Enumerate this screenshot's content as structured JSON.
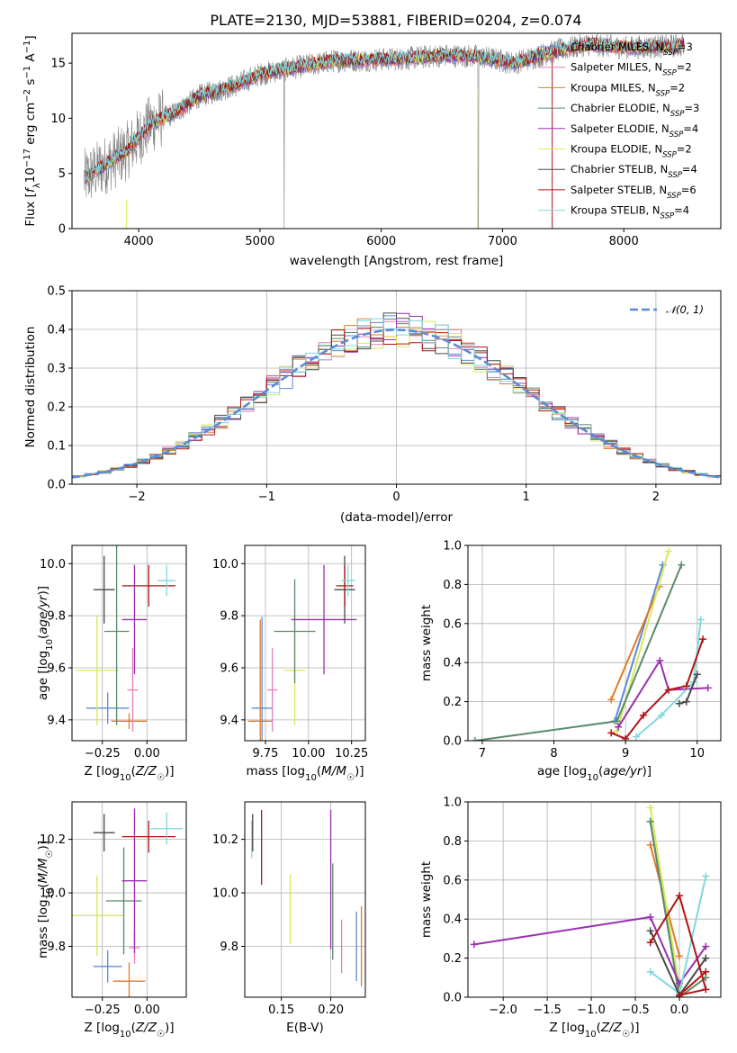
{
  "figure": {
    "title": "PLATE=2130, MJD=53881, FIBERID=0204, z=0.074"
  },
  "colors": {
    "chabrier_miles": "#5b8bd8",
    "salpeter_miles": "#e77fb5",
    "kroupa_miles": "#e07a2a",
    "chabrier_elodie": "#5a8a6a",
    "salpeter_elodie": "#9a2fb0",
    "kroupa_elodie": "#d8e85a",
    "chabrier_stelib": "#4a4a4a",
    "salpeter_stelib": "#b01515",
    "kroupa_stelib": "#7fd8dd",
    "grey_spectrum": "#808080",
    "gaussian": "#5b8bd8"
  },
  "chart_data": [
    {
      "id": "spectrum",
      "type": "line",
      "title": "PLATE=2130, MJD=53881, FIBERID=0204, z=0.074",
      "xlabel": "wavelength [Angstrom, rest frame]",
      "ylabel": "Flux [f_λ 10^-17 erg cm^-2 s^-1 A^-1]",
      "xlim": [
        3450,
        8800
      ],
      "ylim": [
        0,
        17.7
      ],
      "xticks": [
        4000,
        5000,
        6000,
        7000,
        8000
      ],
      "yticks": [
        0,
        5,
        10,
        15
      ],
      "legend_position": "top-right",
      "x_continuum": [
        3550,
        3700,
        3900,
        4100,
        4300,
        4500,
        4800,
        5000,
        5300,
        5600,
        5900,
        6200,
        6500,
        6800,
        7100,
        7400,
        7700,
        8000,
        8300,
        8500
      ],
      "y_continuum": [
        4.5,
        5.6,
        7.0,
        9.5,
        10.5,
        12.0,
        13.0,
        14.0,
        14.6,
        15.2,
        15.3,
        15.4,
        15.7,
        15.6,
        15.0,
        16.0,
        16.7,
        16.4,
        16.5,
        16.6
      ],
      "series": [
        {
          "name": "Chabrier MILES, N_SSP=3",
          "color_key": "chabrier_miles"
        },
        {
          "name": "Salpeter MILES, N_SSP=2",
          "color_key": "salpeter_miles"
        },
        {
          "name": "Kroupa MILES, N_SSP=2",
          "color_key": "kroupa_miles"
        },
        {
          "name": "Chabrier ELODIE, N_SSP=3",
          "color_key": "chabrier_elodie"
        },
        {
          "name": "Salpeter ELODIE, N_SSP=4",
          "color_key": "salpeter_elodie"
        },
        {
          "name": "Kroupa ELODIE, N_SSP=2",
          "color_key": "kroupa_elodie"
        },
        {
          "name": "Chabrier STELIB, N_SSP=4",
          "color_key": "chabrier_stelib"
        },
        {
          "name": "Salpeter STELIB, N_SSP=6",
          "color_key": "salpeter_stelib"
        },
        {
          "name": "Kroupa STELIB, N_SSP=4",
          "color_key": "kroupa_stelib"
        }
      ]
    },
    {
      "id": "residuals",
      "type": "line",
      "xlabel": "(data-model)/error",
      "ylabel": "Normed distribution",
      "xlim": [
        -2.5,
        2.5
      ],
      "ylim": [
        0,
        0.5
      ],
      "xticks": [
        -2,
        -1,
        0,
        1,
        2
      ],
      "yticks": [
        0.0,
        0.1,
        0.2,
        0.3,
        0.4,
        0.5
      ],
      "grid": true,
      "legend_position": "top-right",
      "gaussian_label": "𝒩(0, 1)",
      "bin_width": 0.1
    },
    {
      "id": "age_vs_Z",
      "type": "scatter",
      "xlabel": "Z [log10(Z/Z☉)]",
      "ylabel": "age [log10(age/yr)]",
      "xlim": [
        -0.42,
        0.22
      ],
      "ylim": [
        9.32,
        10.07
      ],
      "xticks": [
        -0.25,
        0.0
      ],
      "yticks": [
        9.4,
        9.6,
        9.8,
        10.0
      ],
      "grid": true,
      "points": [
        {
          "color_key": "chabrier_miles",
          "x": -0.22,
          "y": 9.445,
          "xerr": 0.12,
          "yerr": 0.06
        },
        {
          "color_key": "kroupa_miles",
          "x": -0.1,
          "y": 9.395,
          "xerr": 0.1,
          "yerr": 0.03
        },
        {
          "color_key": "salpeter_miles",
          "x": -0.08,
          "y": 9.515,
          "xerr": 0.03,
          "yerr": 0.16
        },
        {
          "color_key": "kroupa_elodie",
          "x": -0.28,
          "y": 9.59,
          "xerr": 0.12,
          "yerr": 0.21
        },
        {
          "color_key": "chabrier_elodie",
          "x": -0.17,
          "y": 9.74,
          "xerr": 0.07,
          "yerr": 0.36
        },
        {
          "color_key": "salpeter_elodie",
          "x": -0.07,
          "y": 9.785,
          "xerr": 0.07,
          "yerr": 0.21
        },
        {
          "color_key": "chabrier_stelib",
          "x": -0.24,
          "y": 9.9,
          "xerr": 0.06,
          "yerr": 0.13
        },
        {
          "color_key": "salpeter_stelib",
          "x": 0.01,
          "y": 9.915,
          "xerr": 0.15,
          "yerr": 0.08
        },
        {
          "color_key": "kroupa_stelib",
          "x": 0.11,
          "y": 9.935,
          "xerr": 0.05,
          "yerr": 0.06
        }
      ]
    },
    {
      "id": "age_vs_mass",
      "type": "scatter",
      "xlabel": "mass [log10(M/M☉)]",
      "ylabel": "",
      "xlim": [
        9.63,
        10.33
      ],
      "ylim": [
        9.32,
        10.07
      ],
      "xticks": [
        9.75,
        10.0,
        10.25
      ],
      "yticks": [
        9.4,
        9.6,
        9.8,
        10.0
      ],
      "grid": true,
      "points": [
        {
          "color_key": "chabrier_miles",
          "x": 9.73,
          "y": 9.445,
          "xerr": 0.06,
          "yerr": 0.35
        },
        {
          "color_key": "kroupa_miles",
          "x": 9.72,
          "y": 9.395,
          "xerr": 0.07,
          "yerr": 0.39
        },
        {
          "color_key": "salpeter_miles",
          "x": 9.79,
          "y": 9.515,
          "xerr": 0.03,
          "yerr": 0.16
        },
        {
          "color_key": "kroupa_elodie",
          "x": 9.92,
          "y": 9.59,
          "xerr": 0.06,
          "yerr": 0.21
        },
        {
          "color_key": "chabrier_elodie",
          "x": 9.92,
          "y": 9.74,
          "xerr": 0.12,
          "yerr": 0.2
        },
        {
          "color_key": "salpeter_elodie",
          "x": 10.09,
          "y": 9.785,
          "xerr": 0.19,
          "yerr": 0.21
        },
        {
          "color_key": "chabrier_stelib",
          "x": 10.21,
          "y": 9.9,
          "xerr": 0.06,
          "yerr": 0.13
        },
        {
          "color_key": "salpeter_stelib",
          "x": 10.21,
          "y": 9.915,
          "xerr": 0.05,
          "yerr": 0.08
        },
        {
          "color_key": "kroupa_stelib",
          "x": 10.23,
          "y": 9.935,
          "xerr": 0.04,
          "yerr": 0.06
        }
      ]
    },
    {
      "id": "weight_vs_age",
      "type": "line",
      "xlabel": "age [log10(age/yr)]",
      "ylabel": "mass weight",
      "xlim": [
        6.8,
        10.33
      ],
      "ylim": [
        0,
        1.0
      ],
      "xticks": [
        7,
        8,
        9,
        10
      ],
      "yticks": [
        0.0,
        0.2,
        0.4,
        0.6,
        0.8,
        1.0
      ],
      "grid": true,
      "series": [
        {
          "color_key": "chabrier_miles",
          "x": [
            8.85,
            9.52
          ],
          "y": [
            0.1,
            0.9
          ]
        },
        {
          "color_key": "kroupa_miles",
          "x": [
            8.8,
            9.47
          ],
          "y": [
            0.21,
            0.79
          ]
        },
        {
          "color_key": "kroupa_elodie",
          "x": [
            8.88,
            9.6
          ],
          "y": [
            0.05,
            0.97
          ]
        },
        {
          "color_key": "chabrier_elodie",
          "x": [
            6.9,
            8.88,
            9.78
          ],
          "y": [
            0.0,
            0.1,
            0.9
          ]
        },
        {
          "color_key": "salpeter_elodie",
          "x": [
            8.9,
            9.48,
            9.6,
            10.15
          ],
          "y": [
            0.07,
            0.41,
            0.26,
            0.27
          ]
        },
        {
          "color_key": "kroupa_stelib",
          "x": [
            9.15,
            9.5,
            9.95,
            10.05
          ],
          "y": [
            0.02,
            0.13,
            0.3,
            0.62
          ]
        },
        {
          "color_key": "chabrier_stelib",
          "x": [
            9.75,
            9.85,
            10.0
          ],
          "y": [
            0.19,
            0.2,
            0.34
          ]
        },
        {
          "color_key": "salpeter_stelib",
          "x": [
            8.8,
            9.0,
            9.25,
            9.6,
            9.85,
            10.08
          ],
          "y": [
            0.04,
            0.01,
            0.13,
            0.26,
            0.28,
            0.52
          ]
        }
      ]
    },
    {
      "id": "mass_vs_Z",
      "type": "scatter",
      "xlabel": "Z [log10(Z/Z☉)]",
      "ylabel": "mass [log10(M/M☉)]",
      "xlim": [
        -0.42,
        0.22
      ],
      "ylim": [
        9.61,
        10.34
      ],
      "xticks": [
        -0.25,
        0.0
      ],
      "yticks": [
        9.8,
        10.0,
        10.2
      ],
      "grid": true,
      "points": [
        {
          "color_key": "chabrier_miles",
          "x": -0.22,
          "y": 9.725,
          "xerr": 0.08,
          "yerr": 0.06
        },
        {
          "color_key": "kroupa_miles",
          "x": -0.1,
          "y": 9.67,
          "xerr": 0.09,
          "yerr": 0.07
        },
        {
          "color_key": "salpeter_miles",
          "x": -0.07,
          "y": 9.795,
          "xerr": 0.03,
          "yerr": 0.06
        },
        {
          "color_key": "kroupa_elodie",
          "x": -0.28,
          "y": 9.915,
          "xerr": 0.15,
          "yerr": 0.15
        },
        {
          "color_key": "chabrier_elodie",
          "x": -0.13,
          "y": 9.97,
          "xerr": 0.1,
          "yerr": 0.2
        },
        {
          "color_key": "salpeter_elodie",
          "x": -0.07,
          "y": 10.045,
          "xerr": 0.07,
          "yerr": 0.27
        },
        {
          "color_key": "chabrier_stelib",
          "x": -0.24,
          "y": 10.225,
          "xerr": 0.06,
          "yerr": 0.07
        },
        {
          "color_key": "salpeter_stelib",
          "x": 0.01,
          "y": 10.21,
          "xerr": 0.15,
          "yerr": 0.06
        },
        {
          "color_key": "kroupa_stelib",
          "x": 0.11,
          "y": 10.24,
          "xerr": 0.09,
          "yerr": 0.06
        }
      ]
    },
    {
      "id": "mass_vs_ebv",
      "type": "scatter",
      "xlabel": "E(B-V)",
      "ylabel": "",
      "xlim": [
        0.113,
        0.235
      ],
      "ylim": [
        9.61,
        10.34
      ],
      "xticks": [
        0.15,
        0.2
      ],
      "yticks": [
        9.8,
        10.0,
        10.2
      ],
      "grid": true,
      "points": [
        {
          "color_key": "kroupa_stelib",
          "x": 0.12,
          "y": 10.2,
          "yerr": 0.07
        },
        {
          "color_key": "chabrier_stelib",
          "x": 0.121,
          "y": 10.225,
          "yerr": 0.07
        },
        {
          "color_key": "salpeter_stelib",
          "x": 0.13,
          "y": 10.17,
          "yerr": 0.14
        },
        {
          "color_key": "kroupa_elodie",
          "x": 0.159,
          "y": 9.94,
          "yerr": 0.13
        },
        {
          "color_key": "salpeter_elodie",
          "x": 0.2,
          "y": 10.05,
          "yerr": 0.26
        },
        {
          "color_key": "chabrier_elodie",
          "x": 0.202,
          "y": 9.93,
          "yerr": 0.18
        },
        {
          "color_key": "salpeter_miles",
          "x": 0.211,
          "y": 9.8,
          "yerr": 0.1
        },
        {
          "color_key": "chabrier_miles",
          "x": 0.226,
          "y": 9.8,
          "yerr": 0.13
        },
        {
          "color_key": "kroupa_miles",
          "x": 0.231,
          "y": 9.8,
          "yerr": 0.15
        }
      ]
    },
    {
      "id": "weight_vs_Z",
      "type": "line",
      "xlabel": "Z [log10(Z/Z☉)]",
      "ylabel": "mass weight",
      "xlim": [
        -2.4,
        0.47
      ],
      "ylim": [
        0,
        1.0
      ],
      "xticks": [
        -2.0,
        -1.5,
        -1.0,
        -0.5,
        0.0
      ],
      "yticks": [
        0.0,
        0.2,
        0.4,
        0.6,
        0.8,
        1.0
      ],
      "grid": true,
      "series": [
        {
          "color_key": "chabrier_miles",
          "x": [
            -0.33,
            0.0
          ],
          "y": [
            0.9,
            0.0
          ]
        },
        {
          "color_key": "kroupa_miles",
          "x": [
            -0.33,
            0.0
          ],
          "y": [
            0.78,
            0.21
          ]
        },
        {
          "color_key": "kroupa_elodie",
          "x": [
            -0.33,
            0.0
          ],
          "y": [
            0.97,
            0.05
          ]
        },
        {
          "color_key": "chabrier_elodie",
          "x": [
            -0.33,
            0.0,
            0.3
          ],
          "y": [
            0.9,
            0.0,
            0.1
          ]
        },
        {
          "color_key": "salpeter_elodie",
          "x": [
            -2.33,
            -0.33,
            0.0,
            0.3
          ],
          "y": [
            0.27,
            0.41,
            0.07,
            0.26
          ]
        },
        {
          "color_key": "kroupa_stelib",
          "x": [
            -0.33,
            0.0,
            0.3
          ],
          "y": [
            0.13,
            0.02,
            0.62
          ]
        },
        {
          "color_key": "chabrier_stelib",
          "x": [
            -0.33,
            0.0,
            0.3
          ],
          "y": [
            0.34,
            0.01,
            0.2
          ]
        },
        {
          "color_key": "salpeter_stelib",
          "x": [
            -0.33,
            0.0,
            0.3,
            0.0,
            0.3
          ],
          "y": [
            0.28,
            0.52,
            0.04,
            0.01,
            0.13
          ]
        }
      ]
    }
  ]
}
